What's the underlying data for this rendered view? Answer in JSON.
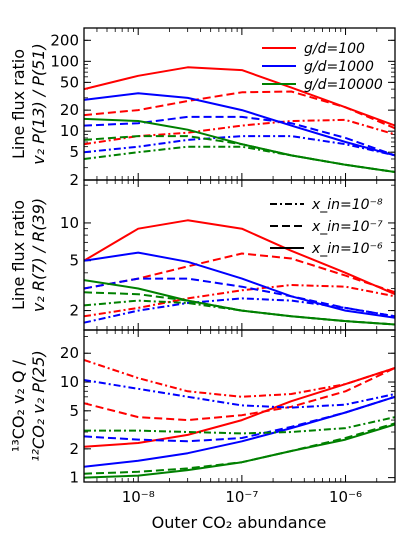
{
  "chart_data": {
    "type": "line",
    "x_axis": {
      "label": "Outer CO₂ abundance",
      "scale": "log",
      "range": [
        3e-09,
        3e-06
      ],
      "ticks": [
        {
          "value": 1e-08,
          "label": "10⁻⁸"
        },
        {
          "value": 1e-07,
          "label": "10⁻⁷"
        },
        {
          "value": 1e-06,
          "label": "10⁻⁶"
        }
      ]
    },
    "x": [
      3e-09,
      1e-08,
      3e-08,
      1e-07,
      3e-07,
      1e-06,
      3e-06
    ],
    "legend_gd": [
      {
        "label": "g/d=100",
        "color": "#ff0000"
      },
      {
        "label": "g/d=1000",
        "color": "#0000ff"
      },
      {
        "label": "g/d=10000",
        "color": "#008000"
      }
    ],
    "legend_xin": [
      {
        "label": "x_in=10⁻⁸",
        "dash": "dashdot"
      },
      {
        "label": "x_in=10⁻⁷",
        "dash": "dashed"
      },
      {
        "label": "x_in=10⁻⁶",
        "dash": "solid"
      }
    ],
    "panels": [
      {
        "id": "top",
        "ylabel_line1": "Line flux ratio",
        "ylabel_line2": "v₂ P(13) / P(51)",
        "ylim": [
          2,
          300
        ],
        "y_ticks": [
          {
            "value": 2,
            "label": "2"
          },
          {
            "value": 5,
            "label": "5"
          },
          {
            "value": 10,
            "label": "10"
          },
          {
            "value": 20,
            "label": "20"
          },
          {
            "value": 50,
            "label": "50"
          },
          {
            "value": 100,
            "label": "100"
          },
          {
            "value": 200,
            "label": "200"
          }
        ],
        "series": [
          {
            "gd": "100",
            "xin": "1e-6",
            "color": "#ff0000",
            "dash": "solid",
            "values": [
              40,
              62,
              82,
              75,
              42,
              22,
              12
            ]
          },
          {
            "gd": "100",
            "xin": "1e-7",
            "color": "#ff0000",
            "dash": "dashed",
            "values": [
              17,
              20,
              27,
              36,
              37,
              22,
              11
            ]
          },
          {
            "gd": "100",
            "xin": "1e-8",
            "color": "#ff0000",
            "dash": "dashdot",
            "values": [
              6.5,
              8.5,
              9.5,
              12,
              14,
              14.5,
              9
            ]
          },
          {
            "gd": "1000",
            "xin": "1e-6",
            "color": "#0000ff",
            "dash": "solid",
            "values": [
              28,
              35,
              30,
              20,
              12,
              7,
              4.5
            ]
          },
          {
            "gd": "1000",
            "xin": "1e-7",
            "color": "#0000ff",
            "dash": "dashed",
            "values": [
              12,
              13,
              16,
              16,
              13,
              8,
              4.5
            ]
          },
          {
            "gd": "1000",
            "xin": "1e-8",
            "color": "#0000ff",
            "dash": "dashdot",
            "values": [
              5,
              6,
              7.5,
              8.5,
              8.5,
              6.5,
              4.5
            ]
          },
          {
            "gd": "10000",
            "xin": "1e-6",
            "color": "#008000",
            "dash": "solid",
            "values": [
              15,
              14,
              10.5,
              6.5,
              4.5,
              3.3,
              2.6
            ]
          },
          {
            "gd": "10000",
            "xin": "1e-7",
            "color": "#008000",
            "dash": "dashed",
            "values": [
              7.5,
              8.5,
              8.5,
              6.5,
              4.5,
              3.3,
              2.6
            ]
          },
          {
            "gd": "10000",
            "xin": "1e-8",
            "color": "#008000",
            "dash": "dashdot",
            "values": [
              4,
              5,
              6,
              6,
              4.5,
              3.3,
              2.6
            ]
          }
        ]
      },
      {
        "id": "middle",
        "ylabel_line1": "Line flux ratio",
        "ylabel_line2": "v₂ R(7) / R(39)",
        "ylim": [
          1.4,
          22
        ],
        "y_ticks": [
          {
            "value": 2,
            "label": "2"
          },
          {
            "value": 5,
            "label": "5"
          },
          {
            "value": 10,
            "label": "10"
          }
        ],
        "series": [
          {
            "gd": "100",
            "xin": "1e-6",
            "color": "#ff0000",
            "dash": "solid",
            "values": [
              5,
              9,
              10.5,
              9,
              6,
              4,
              2.7
            ]
          },
          {
            "gd": "100",
            "xin": "1e-7",
            "color": "#ff0000",
            "dash": "dashed",
            "values": [
              3,
              3.6,
              4.5,
              5.7,
              5.2,
              3.8,
              2.8
            ]
          },
          {
            "gd": "100",
            "xin": "1e-8",
            "color": "#ff0000",
            "dash": "dashdot",
            "values": [
              1.8,
              2.1,
              2.5,
              2.9,
              3.2,
              3.1,
              2.6
            ]
          },
          {
            "gd": "1000",
            "xin": "1e-6",
            "color": "#0000ff",
            "dash": "solid",
            "values": [
              5,
              5.8,
              4.9,
              3.6,
              2.6,
              2,
              1.75
            ]
          },
          {
            "gd": "1000",
            "xin": "1e-7",
            "color": "#0000ff",
            "dash": "dashed",
            "values": [
              3,
              3.6,
              3.6,
              3.1,
              2.6,
              2.1,
              1.8
            ]
          },
          {
            "gd": "1000",
            "xin": "1e-8",
            "color": "#0000ff",
            "dash": "dashdot",
            "values": [
              1.6,
              2,
              2.3,
              2.5,
              2.4,
              2.1,
              1.8
            ]
          },
          {
            "gd": "10000",
            "xin": "1e-6",
            "color": "#008000",
            "dash": "solid",
            "values": [
              3.5,
              3,
              2.4,
              2,
              1.8,
              1.65,
              1.55
            ]
          },
          {
            "gd": "10000",
            "xin": "1e-7",
            "color": "#008000",
            "dash": "dashed",
            "values": [
              2.8,
              2.7,
              2.4,
              2,
              1.8,
              1.65,
              1.55
            ]
          },
          {
            "gd": "10000",
            "xin": "1e-8",
            "color": "#008000",
            "dash": "dashdot",
            "values": [
              2.2,
              2.4,
              2.3,
              2,
              1.8,
              1.65,
              1.55
            ]
          }
        ]
      },
      {
        "id": "bottom",
        "ylabel_line1": "¹³CO₂ v₂ Q /",
        "ylabel_line2": "¹²CO₂ v₂ P(25)",
        "ylim": [
          0.9,
          35
        ],
        "y_ticks": [
          {
            "value": 1,
            "label": "1"
          },
          {
            "value": 2,
            "label": "2"
          },
          {
            "value": 5,
            "label": "5"
          },
          {
            "value": 10,
            "label": "10"
          },
          {
            "value": 20,
            "label": "20"
          }
        ],
        "series": [
          {
            "gd": "100",
            "xin": "1e-6",
            "color": "#ff0000",
            "dash": "solid",
            "values": [
              2.1,
              2.3,
              2.8,
              4,
              6.3,
              9.5,
              14
            ]
          },
          {
            "gd": "100",
            "xin": "1e-7",
            "color": "#ff0000",
            "dash": "dashed",
            "values": [
              6,
              4.3,
              4,
              4.5,
              5.5,
              8,
              14
            ]
          },
          {
            "gd": "100",
            "xin": "1e-8",
            "color": "#ff0000",
            "dash": "dashdot",
            "values": [
              17,
              11,
              8,
              7,
              7.5,
              9.5,
              14
            ]
          },
          {
            "gd": "1000",
            "xin": "1e-6",
            "color": "#0000ff",
            "dash": "solid",
            "values": [
              1.3,
              1.5,
              1.8,
              2.4,
              3.3,
              4.8,
              7
            ]
          },
          {
            "gd": "1000",
            "xin": "1e-7",
            "color": "#0000ff",
            "dash": "dashed",
            "values": [
              2.7,
              2.5,
              2.4,
              2.6,
              3.4,
              4.8,
              7
            ]
          },
          {
            "gd": "1000",
            "xin": "1e-8",
            "color": "#0000ff",
            "dash": "dashdot",
            "values": [
              10.5,
              8.5,
              7,
              5.7,
              5.4,
              5.8,
              7.5
            ]
          },
          {
            "gd": "10000",
            "xin": "1e-6",
            "color": "#008000",
            "dash": "solid",
            "values": [
              1,
              1.05,
              1.2,
              1.45,
              1.9,
              2.5,
              3.6
            ]
          },
          {
            "gd": "10000",
            "xin": "1e-7",
            "color": "#008000",
            "dash": "dashed",
            "values": [
              1.1,
              1.15,
              1.25,
              1.45,
              1.9,
              2.6,
              3.7
            ]
          },
          {
            "gd": "10000",
            "xin": "1e-8",
            "color": "#008000",
            "dash": "dashdot",
            "values": [
              3.1,
              3.1,
              3,
              2.9,
              3,
              3.3,
              4.3
            ]
          }
        ]
      }
    ]
  }
}
